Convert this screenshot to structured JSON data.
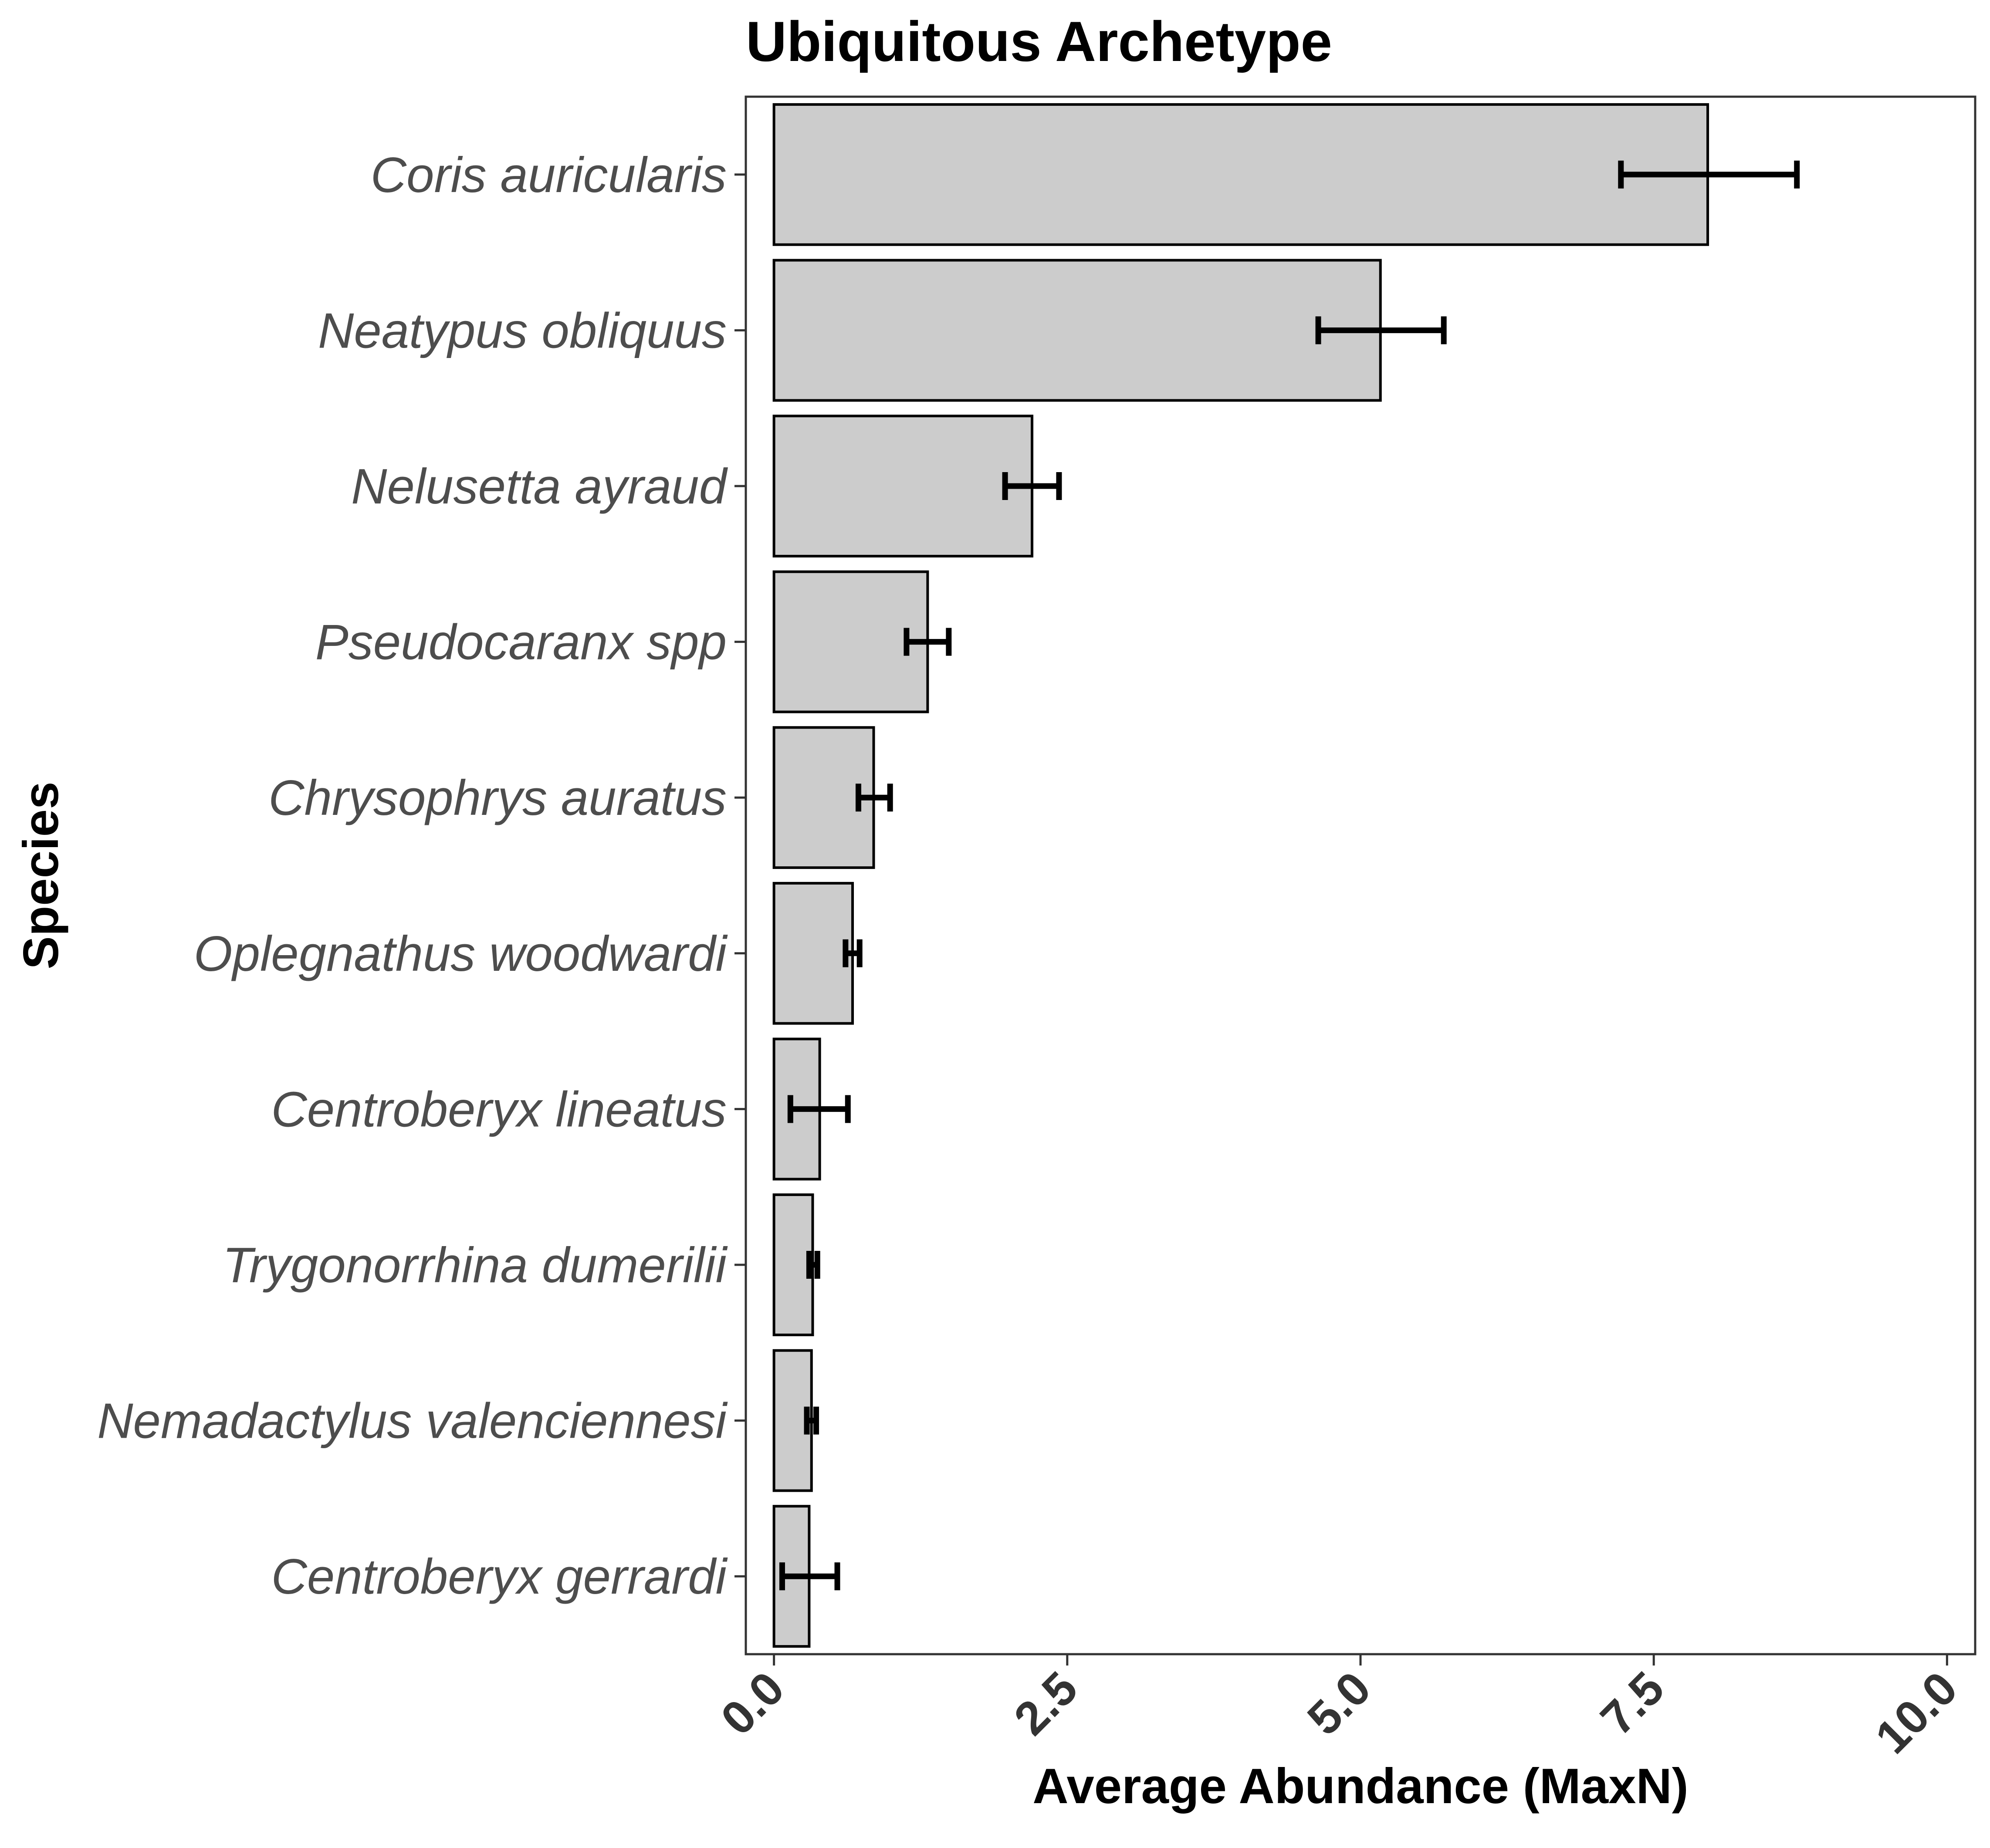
{
  "chart_data": {
    "type": "bar",
    "orientation": "horizontal",
    "title": "Ubiquitous Archetype",
    "xlabel": "Average Abundance (MaxN)",
    "ylabel": "Species",
    "xlim": [
      -0.24,
      10.24
    ],
    "x_ticks": [
      "0.0",
      "2.5",
      "5.0",
      "7.5",
      "10.0"
    ],
    "x_tick_values": [
      0,
      2.5,
      5,
      7.5,
      10
    ],
    "grid": false,
    "legend": "none",
    "bar_fill": "#cccccc",
    "bar_stroke": "#000000",
    "errorbar_color": "#000000",
    "categories": [
      "Coris auricularis",
      "Neatypus obliquus",
      "Nelusetta ayraud",
      "Pseudocaranx spp",
      "Chrysophrys auratus",
      "Oplegnathus woodwardi",
      "Centroberyx lineatus",
      "Trygonorrhina dumerilii",
      "Nemadactylus valenciennesi",
      "Centroberyx gerrardi"
    ],
    "values": [
      7.96,
      5.17,
      2.2,
      1.31,
      0.85,
      0.67,
      0.39,
      0.33,
      0.32,
      0.3
    ],
    "error_low": [
      7.22,
      4.64,
      1.97,
      1.13,
      0.72,
      0.61,
      0.14,
      0.3,
      0.28,
      0.07
    ],
    "error_high": [
      8.72,
      5.71,
      2.43,
      1.49,
      0.99,
      0.73,
      0.63,
      0.37,
      0.36,
      0.54
    ]
  }
}
